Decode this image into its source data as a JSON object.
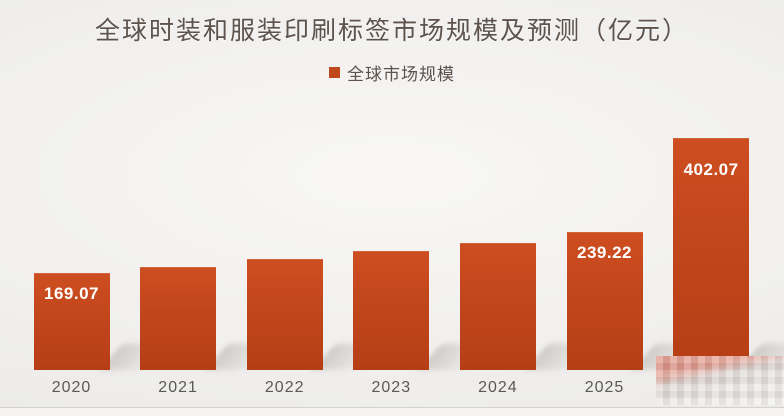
{
  "title": "全球时装和服装印刷标签市场规模及预测（亿元）",
  "legend": {
    "label": "全球市场规模",
    "marker_color": "#bf481d"
  },
  "chart_data": {
    "type": "bar",
    "title": "全球时装和服装印刷标签市场规模及预测（亿元）",
    "categories": [
      "2020",
      "2021",
      "2022",
      "2023",
      "2024",
      "2025",
      ""
    ],
    "values": [
      169.07,
      178,
      192,
      206,
      220,
      239.22,
      402.07
    ],
    "data_labels": [
      "169.07",
      "",
      "",
      "",
      "",
      "239.22",
      "402.07"
    ],
    "series": [
      {
        "name": "全球市场规模",
        "values": [
          169.07,
          178,
          192,
          206,
          220,
          239.22,
          402.07
        ]
      }
    ],
    "xlabel": "",
    "ylabel": "",
    "ylim": [
      0,
      420
    ],
    "grid": false,
    "legend_position": "top-center",
    "bar_color": "#c2461c",
    "value_label_color": "#ffffff",
    "axis_text_color": "#5b5955",
    "notes": "values for 2021-2024 estimated from bar heights (unlabeled); last category label hidden by pixelated mosaic"
  },
  "colors": {
    "bar": "#c2461c",
    "title_text": "#5d524c",
    "axis_text": "#5b5955",
    "value_label": "#ffffff",
    "background": "#eceae8"
  },
  "annotations": {
    "censored_region": "pixelated mosaic over bottom-right year label"
  }
}
